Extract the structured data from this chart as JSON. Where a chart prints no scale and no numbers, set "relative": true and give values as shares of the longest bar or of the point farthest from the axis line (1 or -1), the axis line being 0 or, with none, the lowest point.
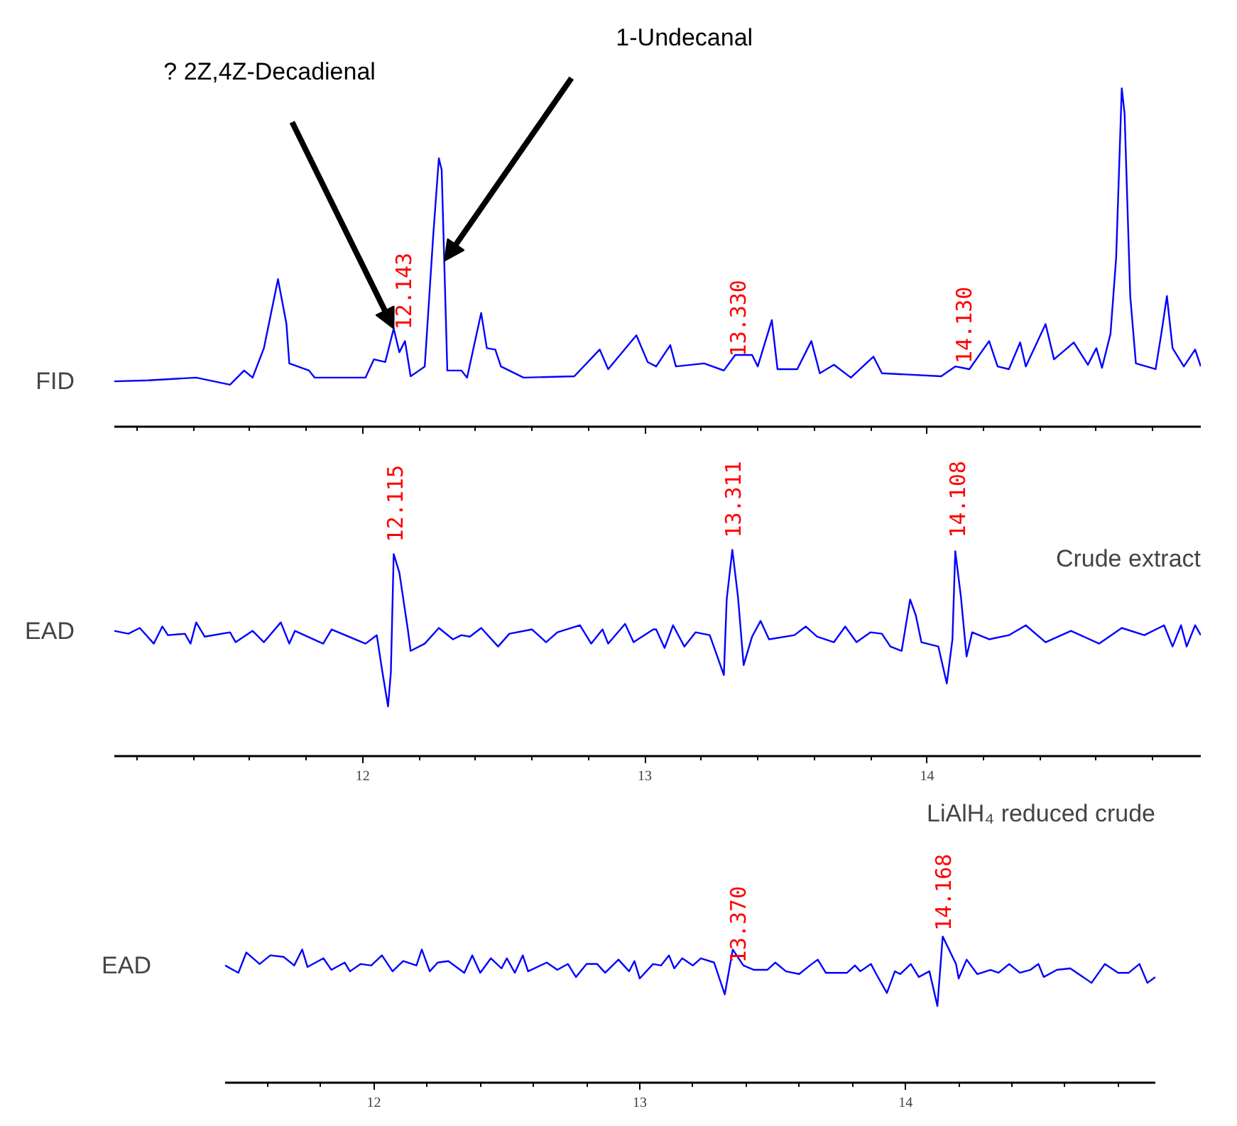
{
  "chart_data": [
    {
      "type": "line",
      "relative": true,
      "ylabel": "FID",
      "xlim": [
        11.12,
        14.97
      ],
      "xticks": [
        12,
        13,
        14
      ],
      "tick_labels": false,
      "marker": "none",
      "line_style": "solid",
      "series": [
        {
          "color": "#0000ff",
          "x": [
            11.12,
            11.24,
            11.41,
            11.53,
            11.58,
            11.61,
            11.65,
            11.7,
            11.73,
            11.74,
            11.81,
            11.83,
            12.01,
            12.04,
            12.08,
            12.11,
            12.13,
            12.15,
            12.17,
            12.2,
            12.22,
            12.25,
            12.27,
            12.28,
            12.3,
            12.35,
            12.37,
            12.42,
            12.44,
            12.47,
            12.49,
            12.57,
            12.75,
            12.84,
            12.87,
            12.97,
            13.01,
            13.04,
            13.09,
            13.11,
            13.21,
            13.28,
            13.32,
            13.38,
            13.4,
            13.45,
            13.47,
            13.54,
            13.59,
            13.62,
            13.67,
            13.73,
            13.81,
            13.84,
            14.05,
            14.1,
            14.15,
            14.22,
            14.25,
            14.29,
            14.33,
            14.35,
            14.42,
            14.45,
            14.52,
            14.57,
            14.6,
            14.62,
            14.65,
            14.67,
            14.69,
            14.7,
            14.72,
            14.74,
            14.81,
            14.83,
            14.85,
            14.87,
            14.91,
            14.95,
            14.97
          ],
          "values": [
            0.134,
            0.137,
            0.145,
            0.124,
            0.166,
            0.145,
            0.232,
            0.436,
            0.303,
            0.187,
            0.166,
            0.145,
            0.145,
            0.199,
            0.191,
            0.29,
            0.22,
            0.253,
            0.149,
            0.166,
            0.178,
            0.564,
            0.793,
            0.759,
            0.166,
            0.166,
            0.145,
            0.336,
            0.232,
            0.228,
            0.178,
            0.145,
            0.149,
            0.228,
            0.17,
            0.27,
            0.191,
            0.178,
            0.241,
            0.178,
            0.187,
            0.166,
            0.212,
            0.212,
            0.178,
            0.315,
            0.17,
            0.17,
            0.253,
            0.158,
            0.183,
            0.145,
            0.207,
            0.158,
            0.149,
            0.178,
            0.17,
            0.253,
            0.178,
            0.17,
            0.249,
            0.178,
            0.303,
            0.199,
            0.249,
            0.183,
            0.232,
            0.174,
            0.274,
            0.498,
            1.0,
            0.925,
            0.386,
            0.187,
            0.17,
            0.274,
            0.386,
            0.232,
            0.178,
            0.228,
            0.178
          ]
        }
      ],
      "annotations": [
        "? 2Z,4Z-Decadienal",
        "1-Undecanal",
        {
          "text": "12.143",
          "x": 12.143,
          "y": 0.27
        },
        {
          "text": "13.330",
          "x": 13.33,
          "y": 0.19
        },
        {
          "text": "14.130",
          "x": 14.13,
          "y": 0.17
        }
      ]
    },
    {
      "type": "line",
      "relative": true,
      "ylabel": "EAD",
      "subtitle": "Crude extract",
      "xlim": [
        11.12,
        14.97
      ],
      "xticks": [
        12,
        13,
        14
      ],
      "tick_labels": "x",
      "marker": "none",
      "line_style": "solid",
      "series": [
        {
          "color": "#0000ff",
          "x": [
            11.12,
            11.17,
            11.21,
            11.26,
            11.29,
            11.31,
            11.37,
            11.39,
            11.41,
            11.44,
            11.53,
            11.55,
            11.61,
            11.65,
            11.71,
            11.74,
            11.76,
            11.86,
            11.89,
            12.01,
            12.05,
            12.07,
            12.09,
            12.1,
            12.11,
            12.13,
            12.16,
            12.17,
            12.22,
            12.27,
            12.32,
            12.35,
            12.38,
            12.42,
            12.48,
            12.52,
            12.6,
            12.65,
            12.69,
            12.77,
            12.81,
            12.85,
            12.87,
            12.93,
            12.96,
            13.03,
            13.04,
            13.07,
            13.1,
            13.14,
            13.18,
            13.23,
            13.28,
            13.29,
            13.31,
            13.33,
            13.35,
            13.38,
            13.41,
            13.44,
            13.53,
            13.57,
            13.61,
            13.67,
            13.71,
            13.75,
            13.8,
            13.84,
            13.87,
            13.91,
            13.94,
            13.96,
            13.98,
            14.04,
            14.07,
            14.09,
            14.1,
            14.12,
            14.14,
            14.16,
            14.22,
            14.29,
            14.35,
            14.42,
            14.51,
            14.61,
            14.69,
            14.77,
            14.84,
            14.87,
            14.9,
            14.92,
            14.95,
            14.97
          ],
          "values": [
            0.607,
            0.593,
            0.621,
            0.545,
            0.628,
            0.586,
            0.593,
            0.545,
            0.648,
            0.579,
            0.6,
            0.552,
            0.607,
            0.552,
            0.648,
            0.545,
            0.607,
            0.545,
            0.614,
            0.545,
            0.586,
            0.407,
            0.241,
            0.407,
            0.979,
            0.89,
            0.614,
            0.51,
            0.545,
            0.621,
            0.566,
            0.586,
            0.579,
            0.621,
            0.531,
            0.593,
            0.614,
            0.552,
            0.6,
            0.634,
            0.545,
            0.614,
            0.545,
            0.641,
            0.552,
            0.614,
            0.614,
            0.524,
            0.634,
            0.531,
            0.6,
            0.586,
            0.393,
            0.759,
            1.0,
            0.772,
            0.441,
            0.579,
            0.655,
            0.566,
            0.586,
            0.628,
            0.579,
            0.552,
            0.628,
            0.552,
            0.6,
            0.593,
            0.531,
            0.51,
            0.759,
            0.683,
            0.552,
            0.531,
            0.352,
            0.566,
            0.993,
            0.772,
            0.483,
            0.6,
            0.566,
            0.586,
            0.634,
            0.552,
            0.607,
            0.545,
            0.621,
            0.586,
            0.634,
            0.531,
            0.634,
            0.531,
            0.634,
            0.586
          ]
        }
      ],
      "annotations": [
        {
          "text": "12.115",
          "x": 12.115,
          "y": 1.01
        },
        {
          "text": "13.311",
          "x": 13.311,
          "y": 1.03
        },
        {
          "text": "14.108",
          "x": 14.108,
          "y": 1.03
        }
      ]
    },
    {
      "type": "line",
      "relative": true,
      "ylabel": "EAD",
      "subtitle": "LiAlH₄ reduced crude",
      "xlim": [
        11.44,
        14.94
      ],
      "xticks": [
        12,
        13,
        14
      ],
      "tick_labels": "x",
      "marker": "none",
      "line_style": "solid",
      "series": [
        {
          "color": "#0000ff",
          "x": [
            11.44,
            11.49,
            11.52,
            11.57,
            11.61,
            11.66,
            11.7,
            11.73,
            11.75,
            11.81,
            11.84,
            11.89,
            11.91,
            11.95,
            11.99,
            12.03,
            12.07,
            12.11,
            12.16,
            12.18,
            12.21,
            12.24,
            12.28,
            12.34,
            12.37,
            12.4,
            12.44,
            12.48,
            12.5,
            12.53,
            12.56,
            12.58,
            12.65,
            12.69,
            12.73,
            12.76,
            12.8,
            12.84,
            12.87,
            12.92,
            12.96,
            12.98,
            13.0,
            13.05,
            13.08,
            13.11,
            13.13,
            13.16,
            13.2,
            13.23,
            13.28,
            13.32,
            13.35,
            13.39,
            13.43,
            13.48,
            13.51,
            13.55,
            13.6,
            13.64,
            13.67,
            13.7,
            13.78,
            13.81,
            13.83,
            13.87,
            13.89,
            13.93,
            13.96,
            13.98,
            14.02,
            14.05,
            14.09,
            14.12,
            14.14,
            14.19,
            14.2,
            14.23,
            14.27,
            14.32,
            14.35,
            14.39,
            14.43,
            14.47,
            14.5,
            14.52,
            14.57,
            14.62,
            14.7,
            14.75,
            14.8,
            14.84,
            14.88,
            14.91,
            14.94
          ],
          "values": [
            0.802,
            0.752,
            0.891,
            0.812,
            0.871,
            0.861,
            0.802,
            0.911,
            0.792,
            0.851,
            0.772,
            0.822,
            0.762,
            0.812,
            0.802,
            0.871,
            0.762,
            0.832,
            0.802,
            0.911,
            0.762,
            0.822,
            0.832,
            0.752,
            0.871,
            0.752,
            0.851,
            0.782,
            0.851,
            0.752,
            0.871,
            0.762,
            0.822,
            0.772,
            0.812,
            0.723,
            0.812,
            0.812,
            0.752,
            0.842,
            0.762,
            0.832,
            0.713,
            0.812,
            0.802,
            0.871,
            0.782,
            0.851,
            0.802,
            0.851,
            0.822,
            0.604,
            0.911,
            0.802,
            0.772,
            0.772,
            0.822,
            0.762,
            0.743,
            0.802,
            0.842,
            0.752,
            0.752,
            0.802,
            0.762,
            0.812,
            0.743,
            0.614,
            0.762,
            0.743,
            0.812,
            0.723,
            0.762,
            0.525,
            1.0,
            0.812,
            0.713,
            0.842,
            0.743,
            0.772,
            0.752,
            0.812,
            0.752,
            0.772,
            0.812,
            0.723,
            0.772,
            0.782,
            0.683,
            0.812,
            0.752,
            0.752,
            0.812,
            0.683,
            0.723
          ]
        }
      ],
      "annotations": [
        {
          "text": "13.370",
          "x": 13.37,
          "y": 0.78
        },
        {
          "text": "14.168",
          "x": 14.14,
          "y": 1.0
        }
      ]
    }
  ]
}
